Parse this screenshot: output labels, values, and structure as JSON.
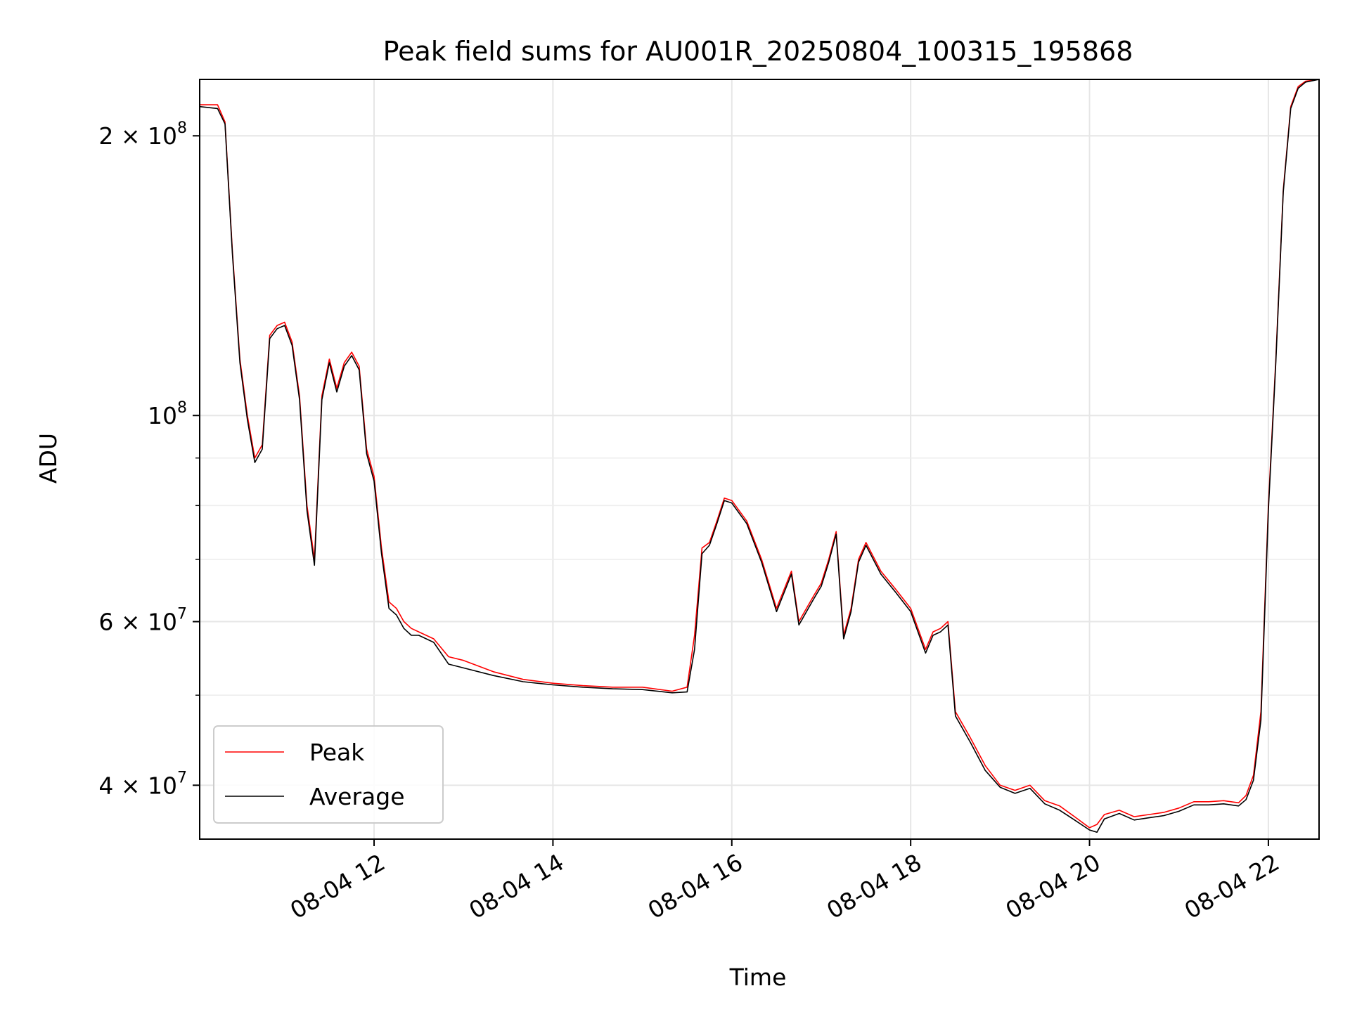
{
  "chart_data": {
    "type": "line",
    "title": "Peak field sums for AU001R_20250804_100315_195868",
    "xlabel": "Time",
    "ylabel": "ADU",
    "y_scale": "log",
    "ylim": [
      35000000,
      230000000
    ],
    "xlim": [
      "08-04 10:03",
      "08-04 22:34"
    ],
    "grid": true,
    "legend_position": "lower-left",
    "x_ticks": [
      {
        "t": "08-04 12:00",
        "label": "08-04 12"
      },
      {
        "t": "08-04 14:00",
        "label": "08-04 14"
      },
      {
        "t": "08-04 16:00",
        "label": "08-04 16"
      },
      {
        "t": "08-04 18:00",
        "label": "08-04 18"
      },
      {
        "t": "08-04 20:00",
        "label": "08-04 20"
      },
      {
        "t": "08-04 22:00",
        "label": "08-04 22"
      }
    ],
    "y_ticks": [
      {
        "v": 40000000,
        "base": "4 × 10",
        "exp": "7"
      },
      {
        "v": 60000000,
        "base": "6 × 10",
        "exp": "7"
      },
      {
        "v": 100000000,
        "base": "10",
        "exp": "8"
      },
      {
        "v": 200000000,
        "base": "2 × 10",
        "exp": "8"
      }
    ],
    "y_minor_ticks": [
      50000000,
      70000000,
      80000000,
      90000000
    ],
    "series": [
      {
        "name": "Peak",
        "color": "#ff0000",
        "x": [
          "08-04 10:03",
          "08-04 10:15",
          "08-04 10:20",
          "08-04 10:25",
          "08-04 10:30",
          "08-04 10:35",
          "08-04 10:40",
          "08-04 10:45",
          "08-04 10:50",
          "08-04 10:55",
          "08-04 11:00",
          "08-04 11:05",
          "08-04 11:10",
          "08-04 11:15",
          "08-04 11:20",
          "08-04 11:25",
          "08-04 11:30",
          "08-04 11:35",
          "08-04 11:40",
          "08-04 11:45",
          "08-04 11:50",
          "08-04 11:55",
          "08-04 12:00",
          "08-04 12:05",
          "08-04 12:10",
          "08-04 12:15",
          "08-04 12:20",
          "08-04 12:25",
          "08-04 12:30",
          "08-04 12:40",
          "08-04 12:50",
          "08-04 13:00",
          "08-04 13:20",
          "08-04 13:40",
          "08-04 14:00",
          "08-04 14:20",
          "08-04 14:40",
          "08-04 15:00",
          "08-04 15:20",
          "08-04 15:30",
          "08-04 15:35",
          "08-04 15:40",
          "08-04 15:45",
          "08-04 15:50",
          "08-04 15:55",
          "08-04 16:00",
          "08-04 16:10",
          "08-04 16:20",
          "08-04 16:30",
          "08-04 16:40",
          "08-04 16:45",
          "08-04 16:55",
          "08-04 17:00",
          "08-04 17:05",
          "08-04 17:10",
          "08-04 17:15",
          "08-04 17:20",
          "08-04 17:25",
          "08-04 17:30",
          "08-04 17:40",
          "08-04 17:50",
          "08-04 18:00",
          "08-04 18:10",
          "08-04 18:15",
          "08-04 18:20",
          "08-04 18:25",
          "08-04 18:30",
          "08-04 18:40",
          "08-04 18:50",
          "08-04 19:00",
          "08-04 19:10",
          "08-04 19:20",
          "08-04 19:30",
          "08-04 19:40",
          "08-04 19:50",
          "08-04 20:00",
          "08-04 20:05",
          "08-04 20:10",
          "08-04 20:20",
          "08-04 20:30",
          "08-04 20:40",
          "08-04 20:50",
          "08-04 21:00",
          "08-04 21:10",
          "08-04 21:20",
          "08-04 21:30",
          "08-04 21:40",
          "08-04 21:45",
          "08-04 21:50",
          "08-04 21:55",
          "08-04 22:00",
          "08-04 22:05",
          "08-04 22:10",
          "08-04 22:15",
          "08-04 22:20",
          "08-04 22:25",
          "08-04 22:34"
        ],
        "values": [
          216000000,
          216000000,
          207000000,
          150000000,
          115000000,
          100000000,
          90000000,
          93000000,
          122000000,
          125000000,
          126000000,
          120000000,
          105000000,
          80000000,
          70000000,
          105000000,
          115000000,
          107000000,
          114000000,
          117000000,
          113000000,
          92000000,
          86000000,
          72000000,
          63000000,
          62000000,
          60000000,
          59000000,
          58500000,
          57500000,
          55000000,
          54500000,
          53000000,
          52000000,
          51500000,
          51200000,
          51000000,
          51000000,
          50500000,
          51000000,
          58000000,
          72000000,
          73000000,
          77000000,
          81500000,
          81000000,
          77000000,
          70000000,
          62000000,
          68000000,
          60000000,
          64000000,
          66000000,
          70000000,
          75000000,
          58000000,
          62000000,
          70000000,
          73000000,
          68000000,
          65000000,
          62000000,
          56000000,
          58500000,
          59000000,
          60000000,
          48000000,
          45000000,
          42000000,
          40000000,
          39500000,
          40000000,
          38500000,
          38000000,
          37000000,
          36000000,
          36300000,
          37200000,
          37600000,
          37000000,
          37200000,
          37400000,
          37800000,
          38400000,
          38400000,
          38500000,
          38300000,
          39000000,
          41000000,
          48000000,
          80000000,
          115000000,
          175000000,
          215000000,
          226000000,
          229000000,
          230000000
        ]
      },
      {
        "name": "Average",
        "color": "#000000",
        "x": [
          "08-04 10:03",
          "08-04 10:15",
          "08-04 10:20",
          "08-04 10:25",
          "08-04 10:30",
          "08-04 10:35",
          "08-04 10:40",
          "08-04 10:45",
          "08-04 10:50",
          "08-04 10:55",
          "08-04 11:00",
          "08-04 11:05",
          "08-04 11:10",
          "08-04 11:15",
          "08-04 11:20",
          "08-04 11:25",
          "08-04 11:30",
          "08-04 11:35",
          "08-04 11:40",
          "08-04 11:45",
          "08-04 11:50",
          "08-04 11:55",
          "08-04 12:00",
          "08-04 12:05",
          "08-04 12:10",
          "08-04 12:15",
          "08-04 12:20",
          "08-04 12:25",
          "08-04 12:30",
          "08-04 12:40",
          "08-04 12:50",
          "08-04 13:00",
          "08-04 13:20",
          "08-04 13:40",
          "08-04 14:00",
          "08-04 14:20",
          "08-04 14:40",
          "08-04 15:00",
          "08-04 15:20",
          "08-04 15:30",
          "08-04 15:35",
          "08-04 15:40",
          "08-04 15:45",
          "08-04 15:50",
          "08-04 15:55",
          "08-04 16:00",
          "08-04 16:10",
          "08-04 16:20",
          "08-04 16:30",
          "08-04 16:40",
          "08-04 16:45",
          "08-04 16:55",
          "08-04 17:00",
          "08-04 17:05",
          "08-04 17:10",
          "08-04 17:15",
          "08-04 17:20",
          "08-04 17:25",
          "08-04 17:30",
          "08-04 17:40",
          "08-04 17:50",
          "08-04 18:00",
          "08-04 18:10",
          "08-04 18:15",
          "08-04 18:20",
          "08-04 18:25",
          "08-04 18:30",
          "08-04 18:40",
          "08-04 18:50",
          "08-04 19:00",
          "08-04 19:10",
          "08-04 19:20",
          "08-04 19:30",
          "08-04 19:40",
          "08-04 19:50",
          "08-04 20:00",
          "08-04 20:05",
          "08-04 20:10",
          "08-04 20:20",
          "08-04 20:30",
          "08-04 20:40",
          "08-04 20:50",
          "08-04 21:00",
          "08-04 21:10",
          "08-04 21:20",
          "08-04 21:30",
          "08-04 21:40",
          "08-04 21:45",
          "08-04 21:50",
          "08-04 21:55",
          "08-04 22:00",
          "08-04 22:05",
          "08-04 22:10",
          "08-04 22:15",
          "08-04 22:20",
          "08-04 22:25",
          "08-04 22:34"
        ],
        "values": [
          215000000,
          214000000,
          206000000,
          149000000,
          114000000,
          99000000,
          89000000,
          92000000,
          121000000,
          124000000,
          125000000,
          119000000,
          104000000,
          79000000,
          69000000,
          104000000,
          114000000,
          106000000,
          113000000,
          116000000,
          112000000,
          91000000,
          85000000,
          71000000,
          62000000,
          61000000,
          59000000,
          58000000,
          58000000,
          57000000,
          54000000,
          53500000,
          52500000,
          51700000,
          51300000,
          51000000,
          50800000,
          50700000,
          50300000,
          50400000,
          56000000,
          71000000,
          72500000,
          76500000,
          81000000,
          80500000,
          76500000,
          69500000,
          61500000,
          67500000,
          59500000,
          63500000,
          65500000,
          69500000,
          74500000,
          57500000,
          61500000,
          69500000,
          72500000,
          67500000,
          64500000,
          61500000,
          55500000,
          58000000,
          58500000,
          59500000,
          47500000,
          44500000,
          41500000,
          39800000,
          39200000,
          39700000,
          38200000,
          37600000,
          36700000,
          35800000,
          35600000,
          36800000,
          37300000,
          36700000,
          36900000,
          37100000,
          37500000,
          38100000,
          38100000,
          38200000,
          38000000,
          38600000,
          40500000,
          47000000,
          79000000,
          114000000,
          174000000,
          214000000,
          225000000,
          228500000,
          230000000
        ]
      }
    ]
  }
}
